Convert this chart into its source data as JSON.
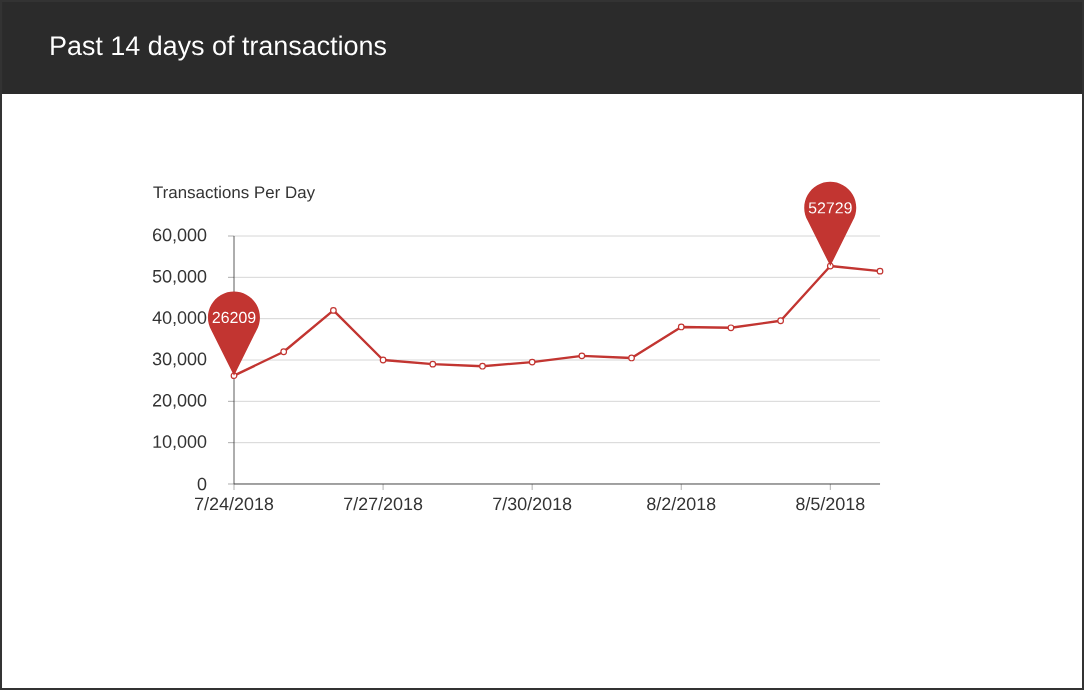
{
  "chart_data": {
    "type": "line",
    "title": "Past 14 days of transactions",
    "ylabel": "Transactions Per Day",
    "categories": [
      "7/24/2018",
      null,
      null,
      "7/27/2018",
      null,
      null,
      "7/30/2018",
      null,
      null,
      "8/2/2018",
      null,
      null,
      "8/5/2018",
      null
    ],
    "series": [
      {
        "color": "#c23531",
        "values": [
          26209,
          32000,
          42000,
          30000,
          29000,
          28500,
          29500,
          31000,
          30500,
          38000,
          37800,
          39500,
          52729,
          51500
        ],
        "value_labels": [
          "26209",
          null,
          null,
          null,
          null,
          null,
          null,
          null,
          null,
          null,
          null,
          null,
          "52729",
          null
        ]
      }
    ],
    "ylim": [
      0,
      60000
    ],
    "yticks": [
      {
        "value": 0,
        "label": "0"
      },
      {
        "value": 10000,
        "label": "10,000"
      },
      {
        "value": 20000,
        "label": "20,000"
      },
      {
        "value": 30000,
        "label": "30,000"
      },
      {
        "value": 40000,
        "label": "40,000"
      },
      {
        "value": 50000,
        "label": "50,000"
      },
      {
        "value": 60000,
        "label": "60,000"
      }
    ],
    "grid": "y",
    "marker": "circle",
    "line_style": "solid"
  }
}
